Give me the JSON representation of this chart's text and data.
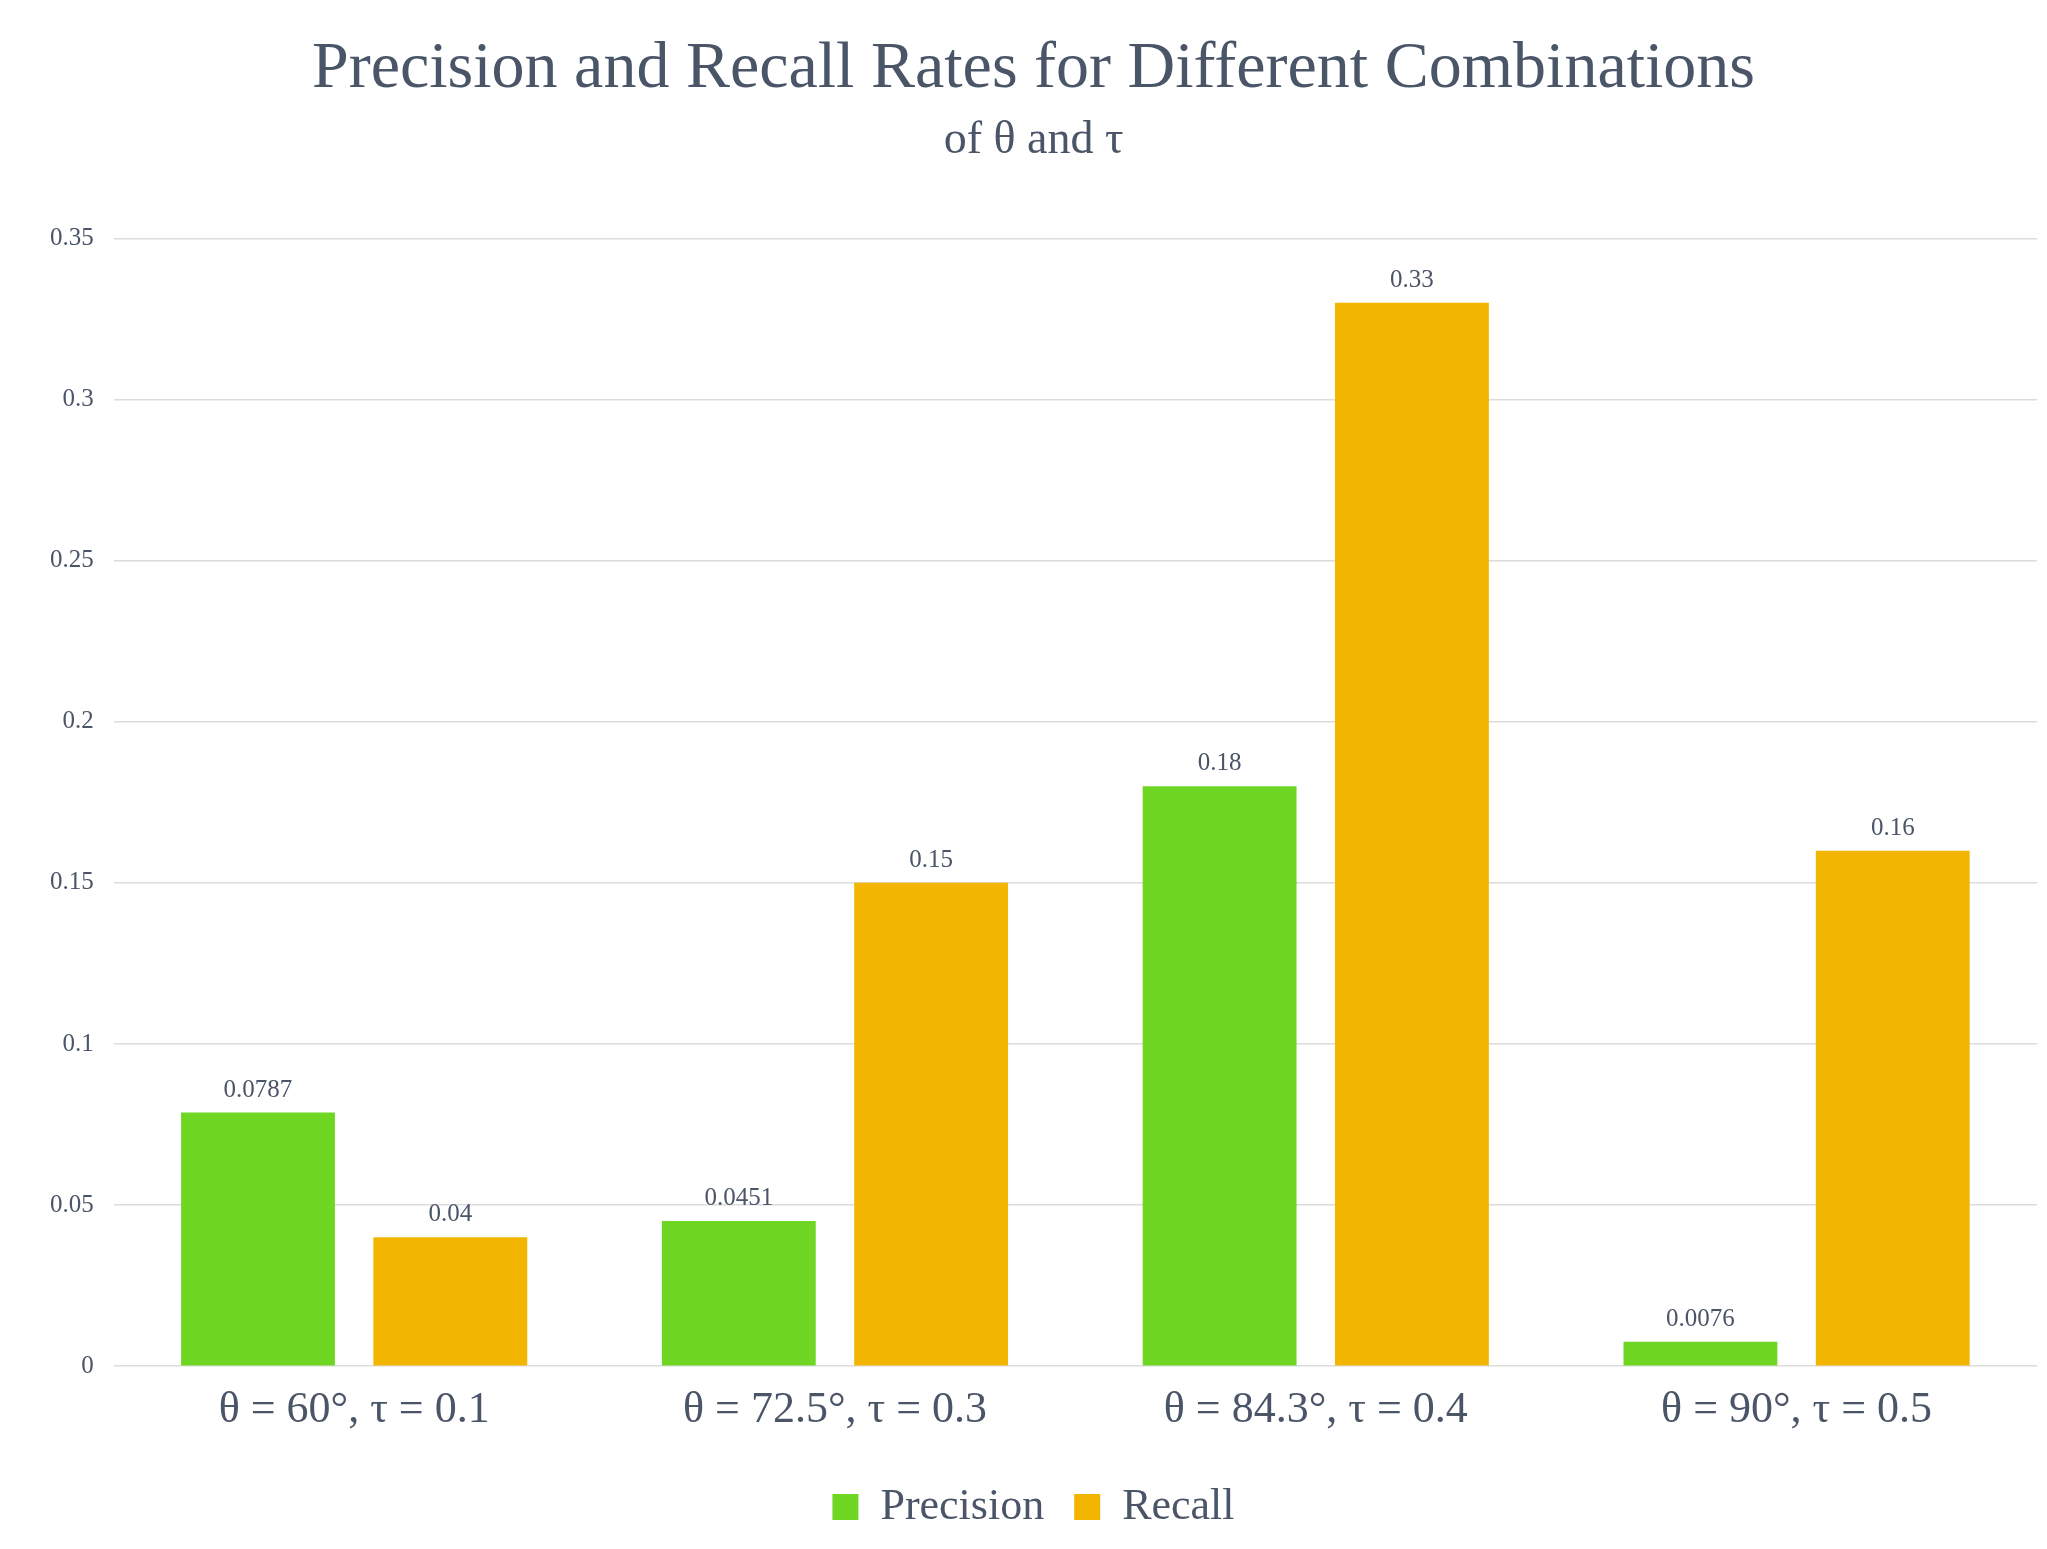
{
  "chart_data": {
    "type": "bar",
    "title": "Precision and Recall Rates for Different Combinations",
    "subtitle": "of θ and τ",
    "categories": [
      "θ = 60°, τ = 0.1",
      "θ = 72.5°, τ = 0.3",
      "θ = 84.3°, τ = 0.4",
      "θ = 90°, τ = 0.5"
    ],
    "series": [
      {
        "name": "Precision",
        "color": "#6fd624",
        "values": [
          0.0787,
          0.0451,
          0.18,
          0.0076
        ]
      },
      {
        "name": "Recall",
        "color": "#f2b600",
        "values": [
          0.04,
          0.15,
          0.33,
          0.16
        ]
      }
    ],
    "ylim": [
      0,
      0.35
    ],
    "yticks": [
      0,
      0.05,
      0.1,
      0.15,
      0.2,
      0.25,
      0.3,
      0.35
    ],
    "grid": "y",
    "legend": "bottom",
    "data_labels": true
  }
}
